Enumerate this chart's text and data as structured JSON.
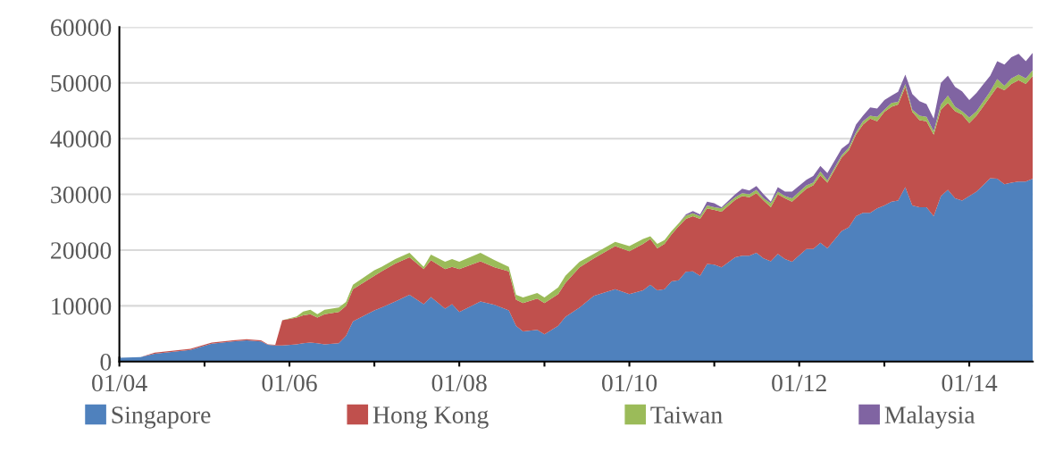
{
  "chart_data": {
    "type": "area",
    "stacked": true,
    "x": [
      "2004-01",
      "2004-04",
      "2004-06",
      "2004-11",
      "2005-02",
      "2005-05",
      "2005-07",
      "2005-09",
      "2005-10",
      "2005-11",
      "2005-12",
      "2006-02",
      "2006-03",
      "2006-04",
      "2006-05",
      "2006-06",
      "2006-08",
      "2006-09",
      "2006-10",
      "2007-01",
      "2007-02",
      "2007-04",
      "2007-06",
      "2007-08",
      "2007-09",
      "2007-11",
      "2007-12",
      "2008-01",
      "2008-04",
      "2008-06",
      "2008-08",
      "2008-09",
      "2008-10",
      "2008-12",
      "2009-01",
      "2009-03",
      "2009-04",
      "2009-06",
      "2009-08",
      "2009-11",
      "2010-01",
      "2010-03",
      "2010-04",
      "2010-05",
      "2010-06",
      "2010-07",
      "2010-08",
      "2010-09",
      "2010-10",
      "2010-11",
      "2010-12",
      "2011-01",
      "2011-02",
      "2011-04",
      "2011-05",
      "2011-06",
      "2011-07",
      "2011-08",
      "2011-09",
      "2011-10",
      "2011-11",
      "2011-12",
      "2012-02",
      "2012-03",
      "2012-04",
      "2012-05",
      "2012-07",
      "2012-08",
      "2012-09",
      "2012-10",
      "2012-11",
      "2012-12",
      "2013-01",
      "2013-02",
      "2013-03",
      "2013-04",
      "2013-05",
      "2013-06",
      "2013-07",
      "2013-08",
      "2013-09",
      "2013-10",
      "2013-11",
      "2013-12",
      "2014-01",
      "2014-02",
      "2014-03",
      "2014-04",
      "2014-05",
      "2014-06",
      "2014-07",
      "2014-08",
      "2014-09",
      "2014-10"
    ],
    "series": [
      {
        "name": "Singapore",
        "color": "#4f81bd",
        "values": [
          700,
          800,
          1400,
          2100,
          3200,
          3600,
          3800,
          3600,
          3000,
          2900,
          2900,
          3100,
          3300,
          3400,
          3300,
          3100,
          3300,
          4600,
          7200,
          9200,
          9700,
          10800,
          12000,
          10300,
          11600,
          9500,
          10300,
          8900,
          10800,
          10200,
          9200,
          6400,
          5400,
          5700,
          4900,
          6400,
          8000,
          9700,
          11800,
          13000,
          12100,
          12800,
          13800,
          12800,
          13000,
          14400,
          14600,
          16100,
          16200,
          15400,
          17500,
          17400,
          16900,
          18700,
          19000,
          19000,
          19500,
          18500,
          18000,
          19300,
          18400,
          17900,
          20200,
          20200,
          21300,
          20300,
          23400,
          24100,
          26100,
          26700,
          26700,
          27500,
          28000,
          28700,
          28900,
          31300,
          28000,
          27700,
          27700,
          26100,
          29700,
          30800,
          29300,
          28900,
          29700,
          30500,
          31600,
          32900,
          32800,
          31800,
          32100,
          32300,
          32300,
          32800
        ]
      },
      {
        "name": "Hong Kong",
        "color": "#c0504d",
        "values": [
          0,
          0,
          200,
          200,
          200,
          200,
          200,
          200,
          100,
          100,
          4500,
          4800,
          5000,
          5100,
          4600,
          5400,
          5600,
          5400,
          5800,
          6200,
          6500,
          6800,
          6700,
          6300,
          6600,
          7100,
          6700,
          7700,
          7200,
          6700,
          7000,
          4700,
          5100,
          5600,
          5600,
          5700,
          6100,
          7200,
          6700,
          7700,
          7700,
          8300,
          8200,
          7500,
          8100,
          8400,
          9700,
          9500,
          9900,
          10200,
          10000,
          9800,
          10000,
          10300,
          10700,
          10500,
          10700,
          10400,
          9700,
          10700,
          10900,
          10800,
          10800,
          11400,
          12100,
          11800,
          13200,
          13800,
          14600,
          15800,
          16900,
          15600,
          16800,
          17000,
          17200,
          18000,
          16800,
          15600,
          15400,
          14600,
          15500,
          15600,
          15600,
          15400,
          13100,
          13600,
          14100,
          14600,
          16500,
          16900,
          17700,
          18200,
          17500,
          18500
        ]
      },
      {
        "name": "Taiwan",
        "color": "#9bbb59",
        "values": [
          0,
          0,
          0,
          0,
          0,
          0,
          0,
          0,
          0,
          0,
          0,
          200,
          700,
          800,
          600,
          800,
          800,
          700,
          800,
          1000,
          800,
          800,
          800,
          400,
          1000,
          1300,
          1400,
          1300,
          1500,
          1300,
          800,
          900,
          1000,
          1000,
          1000,
          1200,
          1300,
          1000,
          800,
          800,
          900,
          900,
          500,
          800,
          700,
          600,
          500,
          600,
          500,
          500,
          500,
          500,
          600,
          500,
          500,
          500,
          600,
          400,
          700,
          500,
          400,
          600,
          600,
          500,
          700,
          400,
          400,
          500,
          400,
          600,
          500,
          800,
          400,
          700,
          500,
          500,
          400,
          800,
          800,
          600,
          900,
          1300,
          800,
          600,
          1000,
          800,
          900,
          1000,
          1400,
          800,
          1000,
          1000,
          1000,
          1000
        ]
      },
      {
        "name": "Malaysia",
        "color": "#8064a2",
        "values": [
          0,
          0,
          0,
          0,
          0,
          0,
          0,
          0,
          0,
          0,
          0,
          0,
          0,
          0,
          0,
          0,
          0,
          0,
          0,
          0,
          0,
          0,
          0,
          0,
          0,
          0,
          0,
          0,
          0,
          0,
          0,
          0,
          0,
          0,
          0,
          0,
          0,
          0,
          0,
          0,
          0,
          0,
          0,
          0,
          0,
          0,
          0,
          200,
          400,
          300,
          700,
          700,
          200,
          500,
          800,
          700,
          700,
          700,
          300,
          800,
          800,
          1200,
          1000,
          1200,
          1000,
          1300,
          1200,
          800,
          1400,
          1000,
          1500,
          1500,
          1700,
          1300,
          1800,
          1700,
          2800,
          2600,
          2300,
          2300,
          3900,
          3600,
          3600,
          3600,
          3100,
          3300,
          3100,
          2800,
          3200,
          3800,
          3800,
          3700,
          3100,
          3100
        ]
      }
    ],
    "xlim": [
      "2004-01",
      "2014-10"
    ],
    "xticks": [
      {
        "value": "2004-01",
        "label": "01/04"
      },
      {
        "value": "2005-01",
        "label": null
      },
      {
        "value": "2006-01",
        "label": "01/06"
      },
      {
        "value": "2007-01",
        "label": null
      },
      {
        "value": "2008-01",
        "label": "01/08"
      },
      {
        "value": "2009-01",
        "label": null
      },
      {
        "value": "2010-01",
        "label": "01/10"
      },
      {
        "value": "2011-01",
        "label": null
      },
      {
        "value": "2012-01",
        "label": "01/12"
      },
      {
        "value": "2013-01",
        "label": null
      },
      {
        "value": "2014-01",
        "label": "01/14"
      }
    ],
    "ylim": [
      0,
      60000
    ],
    "yticks": [
      0,
      10000,
      20000,
      30000,
      40000,
      50000,
      60000
    ],
    "grid": "y",
    "legend": "bottom"
  }
}
